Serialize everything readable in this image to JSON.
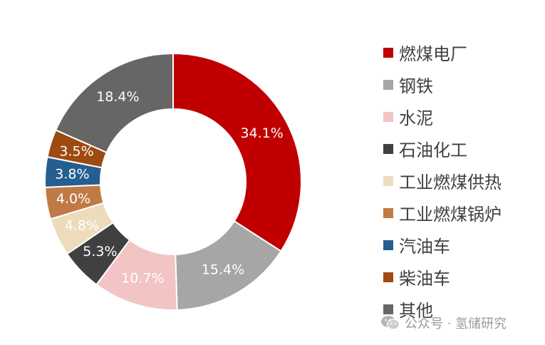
{
  "chart_data": {
    "type": "pie",
    "donut": true,
    "categories": [
      "燃煤电厂",
      "钢铁",
      "水泥",
      "石油化工",
      "工业燃煤供热",
      "工业燃煤锅炉",
      "汽油车",
      "柴油车",
      "其他"
    ],
    "values": [
      34.1,
      15.4,
      10.7,
      5.3,
      4.8,
      4.0,
      3.8,
      3.5,
      18.4
    ],
    "data_labels": [
      "34.1%",
      "15.4%",
      "10.7%",
      "5.3%",
      "4.8%",
      "4.0%",
      "3.8%",
      "3.5%",
      "18.4%"
    ],
    "colors": [
      "#c00000",
      "#a6a6a6",
      "#f2c4c4",
      "#404040",
      "#ecdcbc",
      "#c07a45",
      "#255e91",
      "#9e4a10",
      "#666666"
    ],
    "label_colors": [
      "#ffffff",
      "#ffffff",
      "#ffffff",
      "#ffffff",
      "#ffffff",
      "#ffffff",
      "#ffffff",
      "#ffffff",
      "#ffffff"
    ],
    "legend_position": "right",
    "start": "top",
    "direction": "clockwise"
  },
  "watermark": {
    "icon": "wechat-icon",
    "text": "公众号 · 氢储研究"
  }
}
